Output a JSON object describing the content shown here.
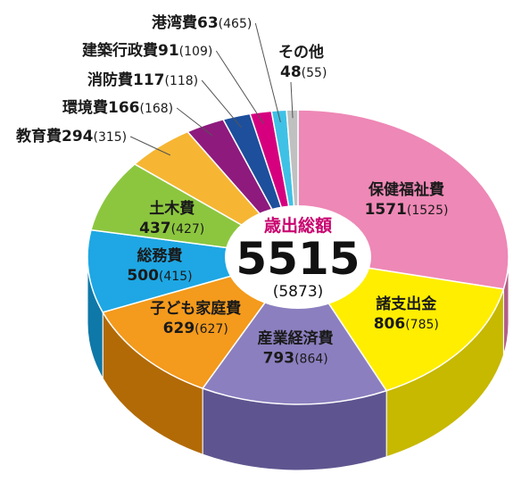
{
  "chart_data": {
    "type": "pie",
    "style": "3d-donut",
    "center": {
      "title": "歳出総額",
      "total": "5515",
      "previous": "(5873)"
    },
    "slices": [
      {
        "name": "保健福祉費",
        "value": 1571,
        "previous": "(1525)",
        "color": "#ee88b6",
        "side": "#b25f86"
      },
      {
        "name": "諸支出金",
        "value": 806,
        "previous": "(785)",
        "color": "#ffee00",
        "side": "#c7b800"
      },
      {
        "name": "産業経済費",
        "value": 793,
        "previous": "(864)",
        "color": "#8c7fbf",
        "side": "#5e5590"
      },
      {
        "name": "子ども家庭費",
        "value": 629,
        "previous": "(627)",
        "color": "#f49a1c",
        "side": "#b26a06"
      },
      {
        "name": "総務費",
        "value": 500,
        "previous": "(415)",
        "color": "#1ea7e4",
        "side": "#0e78a8"
      },
      {
        "name": "土木費",
        "value": 437,
        "previous": "(427)",
        "color": "#8cc63f",
        "side": "#5e8c22"
      },
      {
        "name": "教育費",
        "value": 294,
        "previous": "(315)",
        "color": "#f6b633",
        "side": "#b9841c"
      },
      {
        "name": "環境費",
        "value": 166,
        "previous": "(168)",
        "color": "#8e1a7e",
        "side": "#5e0f54"
      },
      {
        "name": "消防費",
        "value": 117,
        "previous": "(118)",
        "color": "#1d4f9c",
        "side": "#123468"
      },
      {
        "name": "建築行政費",
        "value": 91,
        "previous": "(109)",
        "color": "#d6007f",
        "side": "#940058"
      },
      {
        "name": "港湾費",
        "value": 63,
        "previous": "(465)",
        "color": "#3fc1e6",
        "side": "#2286a4"
      },
      {
        "name": "その他",
        "value": 48,
        "previous": "(55)",
        "color": "#c0c0c0",
        "side": "#8a8a8a"
      }
    ]
  }
}
